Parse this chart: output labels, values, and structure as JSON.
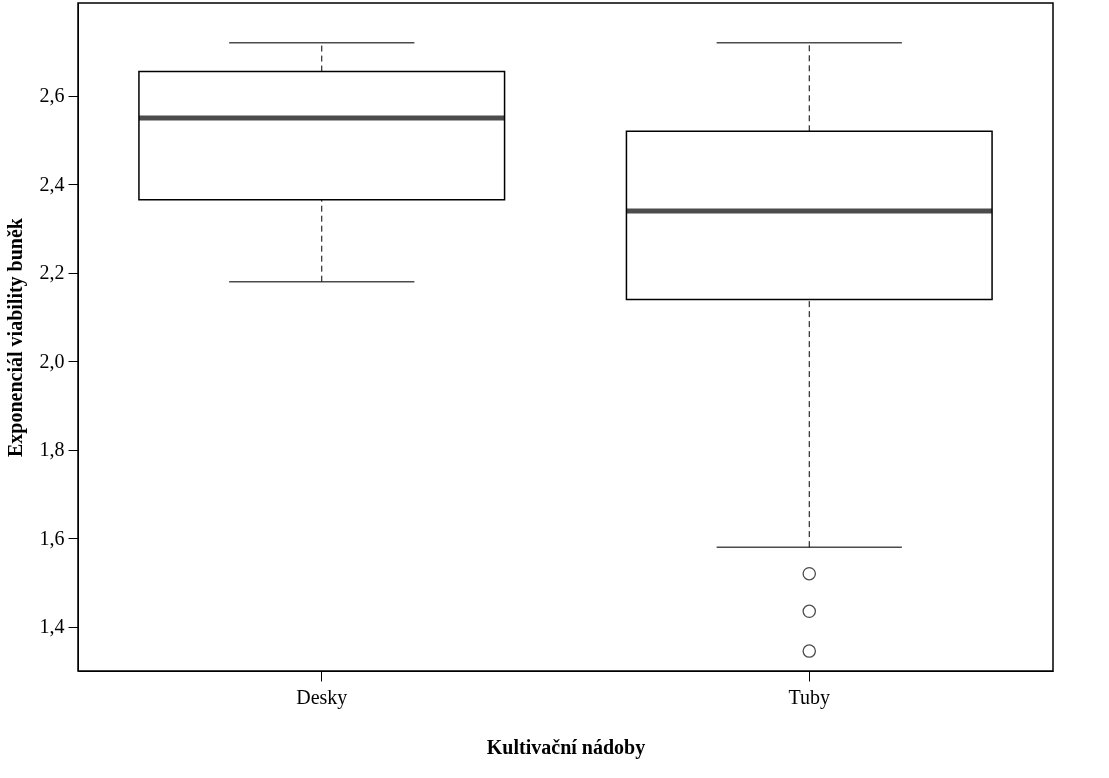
{
  "chart_data": {
    "type": "box",
    "xlabel": "Kultivační nádoby",
    "ylabel": "Exponenciál viability buněk",
    "categories": [
      "Desky",
      "Tuby"
    ],
    "boxes": [
      {
        "low": 2.18,
        "q1": 2.365,
        "median": 2.55,
        "q3": 2.655,
        "high": 2.72
      },
      {
        "low": 1.58,
        "q1": 2.14,
        "median": 2.34,
        "q3": 2.52,
        "high": 2.72,
        "outliers": [
          1.52,
          1.435,
          1.345
        ]
      }
    ],
    "ylim": [
      1.3,
      2.81
    ],
    "yticks": [
      {
        "value": 1.4,
        "label": "1,4"
      },
      {
        "value": 1.6,
        "label": "1,6"
      },
      {
        "value": 1.8,
        "label": "1,8"
      },
      {
        "value": 2.0,
        "label": "2,0"
      },
      {
        "value": 2.2,
        "label": "2,2"
      },
      {
        "value": 2.4,
        "label": "2,4"
      },
      {
        "value": 2.6,
        "label": "2,6"
      }
    ],
    "grid": false
  }
}
